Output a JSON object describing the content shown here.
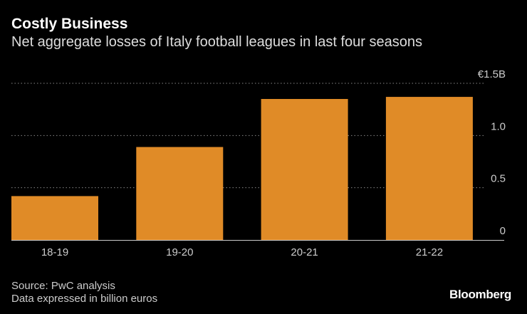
{
  "chart_data": {
    "type": "bar",
    "title": "Costly Business",
    "subtitle": "Net aggregate losses of Italy football leagues in last four seasons",
    "categories": [
      "18-19",
      "19-20",
      "20-21",
      "21-22"
    ],
    "values": [
      0.42,
      0.89,
      1.35,
      1.37
    ],
    "ylim": [
      0,
      1.5
    ],
    "yticks": [
      0,
      0.5,
      1.0,
      1.5
    ],
    "ytick_labels": [
      "0",
      "0.5",
      "1.0",
      "€1.5B"
    ],
    "grid": true,
    "bar_color": "#E08B27"
  },
  "footer": {
    "source": "Source: PwC analysis",
    "note": "Data expressed in billion euros",
    "logo": "Bloomberg"
  }
}
